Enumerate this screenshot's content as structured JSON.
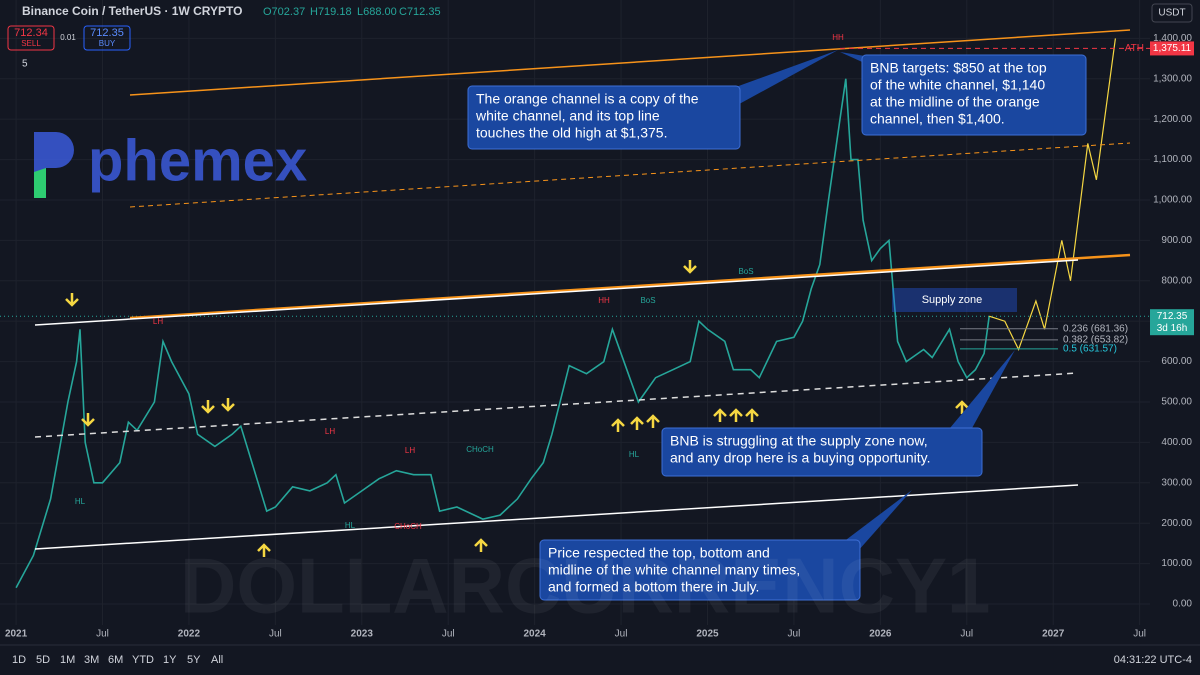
{
  "header": {
    "symbol": "Binance Coin / TetherUS · 1W CRYPTO",
    "open": "O702.37",
    "high": "H719.18",
    "low": "L688.00",
    "close": "C712.35",
    "sell_price": "712.34",
    "sell": "SELL",
    "spread": "0.01",
    "buy_price": "712.35",
    "buy": "BUY",
    "indicators": "5",
    "currency": "USDT",
    "logo": "phemex",
    "watermark": "DOLLARCURRENCY1"
  },
  "chart_data": {
    "type": "line",
    "series": [
      {
        "name": "BNBUSDT",
        "color": "#26a69a",
        "x": [
          2021.0,
          2021.1,
          2021.2,
          2021.3,
          2021.35,
          2021.37,
          2021.4,
          2021.45,
          2021.5,
          2021.6,
          2021.65,
          2021.7,
          2021.8,
          2021.85,
          2021.9,
          2022.0,
          2022.05,
          2022.15,
          2022.25,
          2022.3,
          2022.4,
          2022.45,
          2022.5,
          2022.6,
          2022.7,
          2022.8,
          2022.85,
          2022.9,
          2023.0,
          2023.1,
          2023.2,
          2023.3,
          2023.4,
          2023.45,
          2023.55,
          2023.7,
          2023.8,
          2023.9,
          2023.98,
          2024.05,
          2024.1,
          2024.2,
          2024.3,
          2024.4,
          2024.45,
          2024.55,
          2024.6,
          2024.7,
          2024.8,
          2024.9,
          2024.95,
          2025.0,
          2025.1,
          2025.15,
          2025.25,
          2025.3,
          2025.4,
          2025.5,
          2025.55,
          2025.6,
          2025.65,
          2025.7,
          2025.75,
          2025.8,
          2025.83,
          2025.87,
          2025.9,
          2025.95,
          2026.0,
          2026.05,
          2026.1,
          2026.15,
          2026.25,
          2026.3,
          2026.4,
          2026.45,
          2026.5,
          2026.55,
          2026.6,
          2026.63
        ],
        "values": [
          40,
          120,
          260,
          500,
          600,
          680,
          400,
          300,
          300,
          350,
          450,
          430,
          500,
          650,
          600,
          520,
          420,
          390,
          420,
          440,
          300,
          230,
          240,
          290,
          280,
          300,
          320,
          250,
          280,
          310,
          330,
          320,
          320,
          230,
          240,
          210,
          220,
          260,
          310,
          350,
          420,
          590,
          570,
          600,
          680,
          560,
          500,
          560,
          580,
          600,
          700,
          680,
          650,
          580,
          580,
          560,
          650,
          660,
          700,
          780,
          840,
          1000,
          1150,
          1300,
          1100,
          1100,
          950,
          850,
          880,
          900,
          650,
          600,
          630,
          610,
          680,
          600,
          560,
          580,
          620,
          712.35
        ]
      },
      {
        "name": "Projection",
        "color": "#f5d742",
        "x": [
          2026.63,
          2026.72,
          2026.8,
          2026.9,
          2026.95,
          2027.05,
          2027.1,
          2027.2,
          2027.25,
          2027.36
        ],
        "values": [
          712.35,
          700,
          630,
          750,
          680,
          900,
          800,
          1140,
          1050,
          1400
        ]
      }
    ],
    "xlim": [
      2020.907,
      2027.56
    ],
    "xticks": [
      {
        "value": 2021,
        "label": "2021"
      },
      {
        "value": 2021.5,
        "label": "Jul"
      },
      {
        "value": 2022,
        "label": "2022"
      },
      {
        "value": 2022.5,
        "label": "Jul"
      },
      {
        "value": 2023,
        "label": "2023"
      },
      {
        "value": 2023.5,
        "label": "Jul"
      },
      {
        "value": 2024,
        "label": "2024"
      },
      {
        "value": 2024.5,
        "label": "Jul"
      },
      {
        "value": 2025,
        "label": "2025"
      },
      {
        "value": 2025.5,
        "label": "Jul"
      },
      {
        "value": 2026,
        "label": "2026"
      },
      {
        "value": 2026.5,
        "label": "Jul"
      },
      {
        "value": 2027,
        "label": "2027"
      },
      {
        "value": 2027.5,
        "label": "Jul"
      }
    ],
    "ylim": [
      -52,
      1495
    ],
    "yticks": [
      {
        "value": 0,
        "label": "0.00"
      },
      {
        "value": 100,
        "label": "100.00"
      },
      {
        "value": 200,
        "label": "200.00"
      },
      {
        "value": 300,
        "label": "300.00"
      },
      {
        "value": 400,
        "label": "400.00"
      },
      {
        "value": 500,
        "label": "500.00"
      },
      {
        "value": 600,
        "label": "600.00"
      },
      {
        "value": 700,
        "label": "700.00"
      },
      {
        "value": 800,
        "label": "800.00"
      },
      {
        "value": 900,
        "label": "900.00"
      },
      {
        "value": 1000,
        "label": "1,000.00"
      },
      {
        "value": 1100,
        "label": "1,100.00"
      },
      {
        "value": 1200,
        "label": "1,200.00"
      },
      {
        "value": 1300,
        "label": "1,300.00"
      },
      {
        "value": 1400,
        "label": "1,400.00"
      }
    ],
    "ath": {
      "text": "ATH",
      "value": 1375.11,
      "label": "1,375.11"
    },
    "last": {
      "value": 712.35,
      "label": "712.35",
      "countdown": "3d 16h"
    },
    "fib": [
      {
        "value": 681.36,
        "label": "0.236 (681.36)"
      },
      {
        "value": 653.82,
        "label": "0.382 (653.82)"
      },
      {
        "value": 631.57,
        "label": "0.5 (631.57)"
      }
    ],
    "zone": "Supply zone",
    "marks": [
      "HH",
      "LH",
      "LH",
      "LH",
      "HH",
      "BoS",
      "BoS",
      "HL",
      "HL",
      "HL",
      "CHoCH",
      "CHoCH"
    ],
    "callouts": [
      [
        "The orange channel is a copy of the",
        "white channel, and its top line",
        "touches the old high at $1,375."
      ],
      [
        "BNB targets: $850 at the top",
        "of the white channel, $1,140",
        "at the midline of the orange",
        "channel, then $1,400."
      ],
      [
        "BNB is struggling at the supply zone now,",
        "and any drop here is a buying opportunity."
      ],
      [
        "Price respected the top, bottom and",
        "midline of the white channel many times,",
        "and formed a bottom there in July."
      ]
    ]
  },
  "footer": {
    "ranges": [
      "1D",
      "5D",
      "1M",
      "3M",
      "6M",
      "YTD",
      "1Y",
      "5Y",
      "All"
    ],
    "clock": "04:31:22 UTC-4"
  }
}
